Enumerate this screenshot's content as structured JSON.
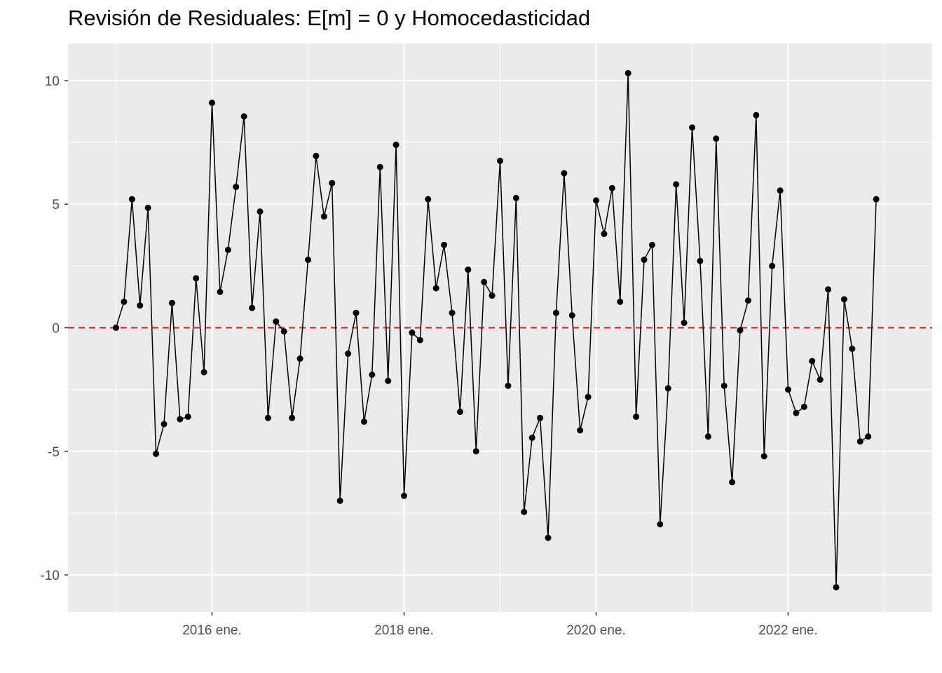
{
  "chart_data": {
    "type": "line",
    "title": "Revisión de Residuales: E[m] = 0 y Homocedasticidad",
    "xlabel": "",
    "ylabel": "",
    "x_start": "2015-01",
    "x_frequency": "monthly",
    "ylim": [
      -11.5,
      11.5
    ],
    "y_ticks": [
      -10,
      -5,
      0,
      5,
      10
    ],
    "y_tick_labels": [
      "-10",
      "-5",
      "0",
      "5",
      "10"
    ],
    "x_ticks": [
      "2016-01",
      "2018-01",
      "2020-01",
      "2022-01"
    ],
    "x_tick_labels": [
      "2016 ene.",
      "2018 ene.",
      "2020 ene.",
      "2022 ene."
    ],
    "x_range": [
      "2014-07",
      "2023-07"
    ],
    "grid": true,
    "reference_line": {
      "y": 0,
      "color": "#e31a1c",
      "style": "dashed"
    },
    "series": [
      {
        "color": "#000000",
        "values": [
          0.0,
          1.05,
          5.2,
          0.9,
          4.85,
          -5.1,
          -3.9,
          1.0,
          -3.7,
          -3.6,
          2.0,
          -1.8,
          9.1,
          1.45,
          3.15,
          5.7,
          8.55,
          0.8,
          4.7,
          -3.65,
          0.25,
          -0.15,
          -3.65,
          -1.25,
          2.75,
          6.95,
          4.5,
          5.85,
          -7.0,
          -1.05,
          0.6,
          -3.8,
          -1.9,
          6.5,
          -2.15,
          7.4,
          -6.8,
          -0.2,
          -0.5,
          5.2,
          1.6,
          3.35,
          0.6,
          -3.4,
          2.35,
          -5.0,
          1.85,
          1.3,
          6.75,
          -2.35,
          5.25,
          -7.45,
          -4.45,
          -3.65,
          -8.5,
          0.6,
          6.25,
          0.5,
          -4.15,
          -2.8,
          5.15,
          3.8,
          5.65,
          1.05,
          10.3,
          -3.6,
          2.75,
          3.35,
          -7.95,
          -2.45,
          5.8,
          0.2,
          8.1,
          2.7,
          -4.4,
          7.65,
          -2.35,
          -6.25,
          -0.1,
          1.1,
          8.6,
          -5.2,
          2.5,
          5.55,
          -2.5,
          -3.45,
          -3.2,
          -1.35,
          -2.1,
          1.55,
          -10.5,
          1.15,
          -0.85,
          -4.6,
          -4.4,
          5.2
        ]
      }
    ]
  },
  "colors": {
    "panel_background": "#ebebeb",
    "grid_major": "#ffffff",
    "line": "#000000",
    "reference_line": "#e31a1c"
  }
}
